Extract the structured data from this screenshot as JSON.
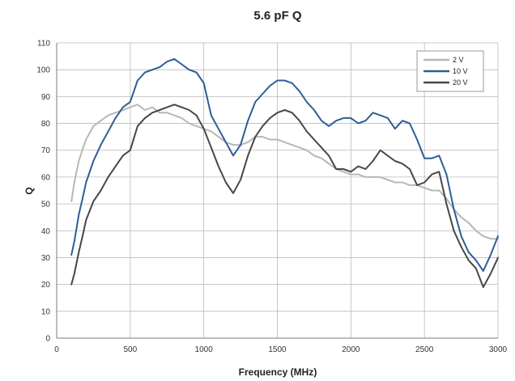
{
  "chart_data": {
    "type": "line",
    "title": "5.6 pF Q",
    "xlabel": "Frequency (MHz)",
    "ylabel": "Q",
    "xlim": [
      0,
      3000
    ],
    "ylim": [
      0,
      110
    ],
    "xticks": [
      0,
      500,
      1000,
      1500,
      2000,
      2500,
      3000
    ],
    "yticks": [
      0,
      10,
      20,
      30,
      40,
      50,
      60,
      70,
      80,
      90,
      100,
      110
    ],
    "grid": true,
    "legend_position": "top-right",
    "series": [
      {
        "name": "2 V",
        "color": "#b7b7b7",
        "x": [
          100,
          120,
          150,
          180,
          200,
          250,
          300,
          350,
          400,
          450,
          500,
          550,
          600,
          650,
          700,
          750,
          800,
          850,
          900,
          950,
          1000,
          1050,
          1100,
          1150,
          1200,
          1250,
          1300,
          1350,
          1400,
          1450,
          1500,
          1550,
          1600,
          1650,
          1700,
          1750,
          1800,
          1850,
          1900,
          1950,
          2000,
          2050,
          2100,
          2150,
          2200,
          2250,
          2300,
          2350,
          2400,
          2450,
          2500,
          2550,
          2600,
          2650,
          2700,
          2750,
          2800,
          2850,
          2900,
          2950,
          3000
        ],
        "y": [
          51,
          58,
          66,
          71,
          74,
          79,
          81,
          83,
          84,
          85,
          86,
          87,
          85,
          86,
          84,
          84,
          83,
          82,
          80,
          79,
          78,
          77,
          75,
          73,
          72,
          72,
          73,
          75,
          75,
          74,
          74,
          73,
          72,
          71,
          70,
          68,
          67,
          65,
          63,
          62,
          61,
          61,
          60,
          60,
          60,
          59,
          58,
          58,
          57,
          57,
          56,
          55,
          55,
          52,
          48,
          45,
          43,
          40,
          38,
          37,
          37
        ]
      },
      {
        "name": "10 V",
        "color": "#2e5e96",
        "x": [
          100,
          120,
          150,
          180,
          200,
          250,
          300,
          350,
          400,
          450,
          500,
          550,
          600,
          650,
          700,
          750,
          800,
          850,
          900,
          950,
          1000,
          1050,
          1100,
          1150,
          1200,
          1250,
          1300,
          1350,
          1400,
          1450,
          1500,
          1550,
          1600,
          1650,
          1700,
          1750,
          1800,
          1850,
          1900,
          1950,
          2000,
          2050,
          2100,
          2150,
          2200,
          2250,
          2300,
          2350,
          2400,
          2450,
          2500,
          2550,
          2600,
          2650,
          2700,
          2750,
          2800,
          2850,
          2900,
          2950,
          3000
        ],
        "y": [
          31,
          36,
          46,
          53,
          58,
          66,
          72,
          77,
          82,
          86,
          88,
          96,
          99,
          100,
          101,
          103,
          104,
          102,
          100,
          99,
          95,
          83,
          78,
          73,
          68,
          72,
          81,
          88,
          91,
          94,
          96,
          96,
          95,
          92,
          88,
          85,
          81,
          79,
          81,
          82,
          82,
          80,
          81,
          84,
          83,
          82,
          78,
          81,
          80,
          74,
          67,
          67,
          68,
          61,
          48,
          38,
          32,
          29,
          25,
          31,
          38
        ]
      },
      {
        "name": "20 V",
        "color": "#474747",
        "x": [
          100,
          120,
          150,
          180,
          200,
          250,
          300,
          350,
          400,
          450,
          500,
          550,
          600,
          650,
          700,
          750,
          800,
          850,
          900,
          950,
          1000,
          1050,
          1100,
          1150,
          1200,
          1250,
          1300,
          1350,
          1400,
          1450,
          1500,
          1550,
          1600,
          1650,
          1700,
          1750,
          1800,
          1850,
          1900,
          1950,
          2000,
          2050,
          2100,
          2150,
          2200,
          2250,
          2300,
          2350,
          2400,
          2450,
          2500,
          2550,
          2600,
          2650,
          2700,
          2750,
          2800,
          2850,
          2900,
          2950,
          3000
        ],
        "y": [
          20,
          24,
          32,
          39,
          44,
          51,
          55,
          60,
          64,
          68,
          70,
          79,
          82,
          84,
          85,
          86,
          87,
          86,
          85,
          83,
          78,
          71,
          64,
          58,
          54,
          59,
          68,
          75,
          79,
          82,
          84,
          85,
          84,
          81,
          77,
          74,
          71,
          68,
          63,
          63,
          62,
          64,
          63,
          66,
          70,
          68,
          66,
          65,
          63,
          57,
          58,
          61,
          62,
          50,
          40,
          34,
          29,
          26,
          19,
          24,
          30
        ]
      }
    ]
  }
}
